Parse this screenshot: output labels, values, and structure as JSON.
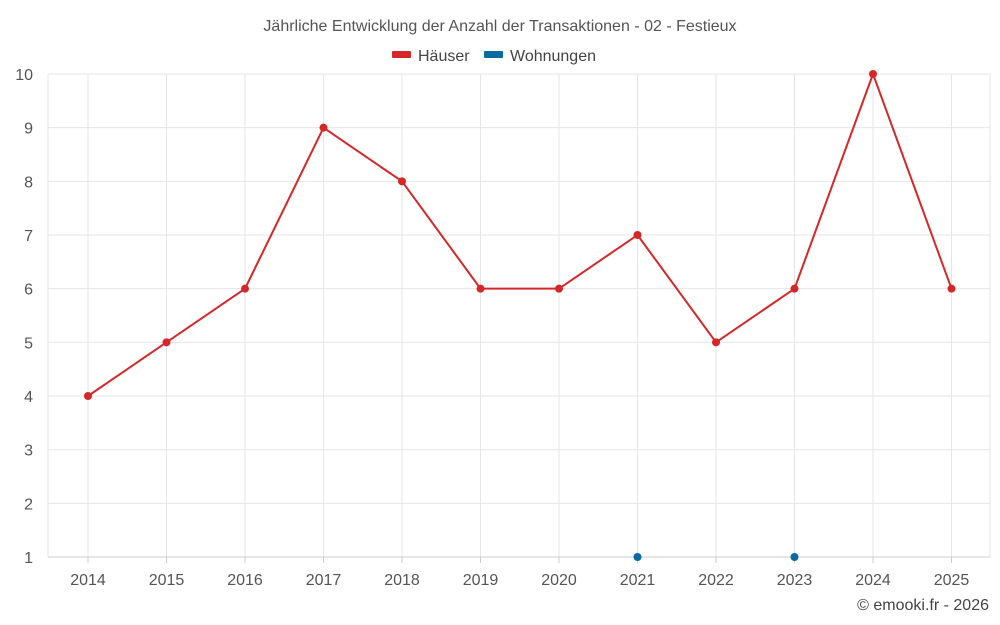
{
  "chart_data": {
    "type": "line",
    "title": "Jährliche Entwicklung der Anzahl der Transaktionen - 02 - Festieux",
    "x": [
      "2014",
      "2015",
      "2016",
      "2017",
      "2018",
      "2019",
      "2020",
      "2021",
      "2022",
      "2023",
      "2024",
      "2025"
    ],
    "ylim": [
      1,
      10
    ],
    "yticks": [
      "1",
      "2",
      "3",
      "4",
      "5",
      "6",
      "7",
      "8",
      "9",
      "10"
    ],
    "grid": true,
    "legend_position": "top-center",
    "series": [
      {
        "name": "Häuser",
        "color": "#d62728",
        "values": [
          4,
          5,
          6,
          9,
          8,
          6,
          6,
          7,
          5,
          6,
          10,
          6
        ]
      },
      {
        "name": "Wohnungen",
        "color": "#0b6aa2",
        "values": [
          null,
          null,
          null,
          null,
          null,
          null,
          null,
          1,
          null,
          1,
          null,
          null
        ]
      }
    ]
  },
  "credit": "© emooki.fr - 2026"
}
